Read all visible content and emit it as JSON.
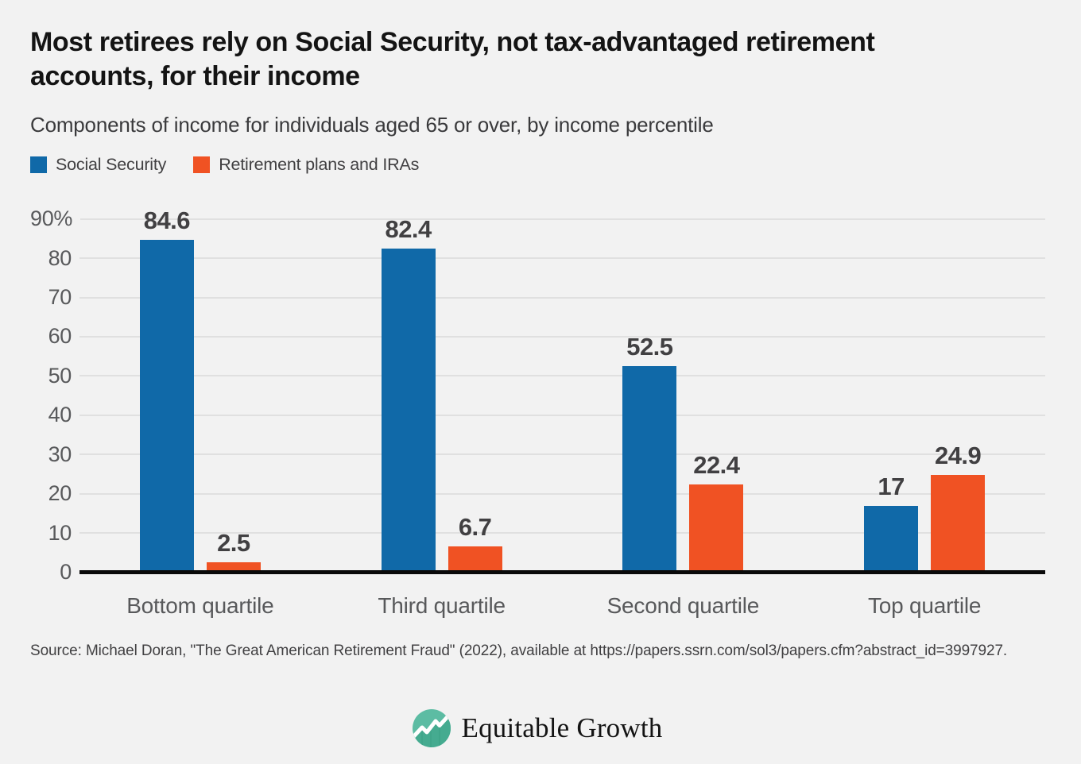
{
  "header": {
    "title_line1": "Most retirees rely on Social Security, not tax-advantaged retirement",
    "title_line2": "accounts, for their income",
    "subtitle": "Components of income for individuals aged 65 or over, by income percentile"
  },
  "legend": {
    "items": [
      {
        "label": "Social Security",
        "color": "#1069A8"
      },
      {
        "label": "Retirement plans and IRAs",
        "color": "#F05223"
      }
    ]
  },
  "chart_data": {
    "type": "bar",
    "categories": [
      "Bottom quartile",
      "Third quartile",
      "Second quartile",
      "Top quartile"
    ],
    "series": [
      {
        "name": "Social Security",
        "color": "#1069A8",
        "values": [
          84.6,
          82.4,
          52.5,
          17
        ],
        "labels": [
          "84.6",
          "82.4",
          "52.5",
          "17"
        ]
      },
      {
        "name": "Retirement plans and IRAs",
        "color": "#F05223",
        "values": [
          2.5,
          6.7,
          22.4,
          24.9
        ],
        "labels": [
          "2.5",
          "6.7",
          "22.4",
          "24.9"
        ]
      }
    ],
    "ylabel": "",
    "xlabel": "",
    "ylim": [
      0,
      90
    ],
    "yticks": [
      {
        "label": "90%",
        "value": 90
      },
      {
        "label": "80",
        "value": 80
      },
      {
        "label": "70",
        "value": 70
      },
      {
        "label": "60",
        "value": 60
      },
      {
        "label": "50",
        "value": 50
      },
      {
        "label": "40",
        "value": 40
      },
      {
        "label": "30",
        "value": 30
      },
      {
        "label": "20",
        "value": 20
      },
      {
        "label": "10",
        "value": 10
      },
      {
        "label": "0",
        "value": 0
      }
    ],
    "grid": "horizontal",
    "legend_position": "top",
    "value_labels": true,
    "colors": {
      "background": "#F2F2F2",
      "gridline": "#E0E0E0",
      "axis_line": "#0A0A0A",
      "tick_text": "#58595B",
      "value_text": "#414042"
    }
  },
  "footer": {
    "source": "Source: Michael Doran, \"The Great American Retirement Fraud\" (2022), available at https://papers.ssrn.com/sol3/papers.cfm?abstract_id=3997927.",
    "logo_text": "Equitable Growth",
    "logo_color": "#55B8A0"
  }
}
